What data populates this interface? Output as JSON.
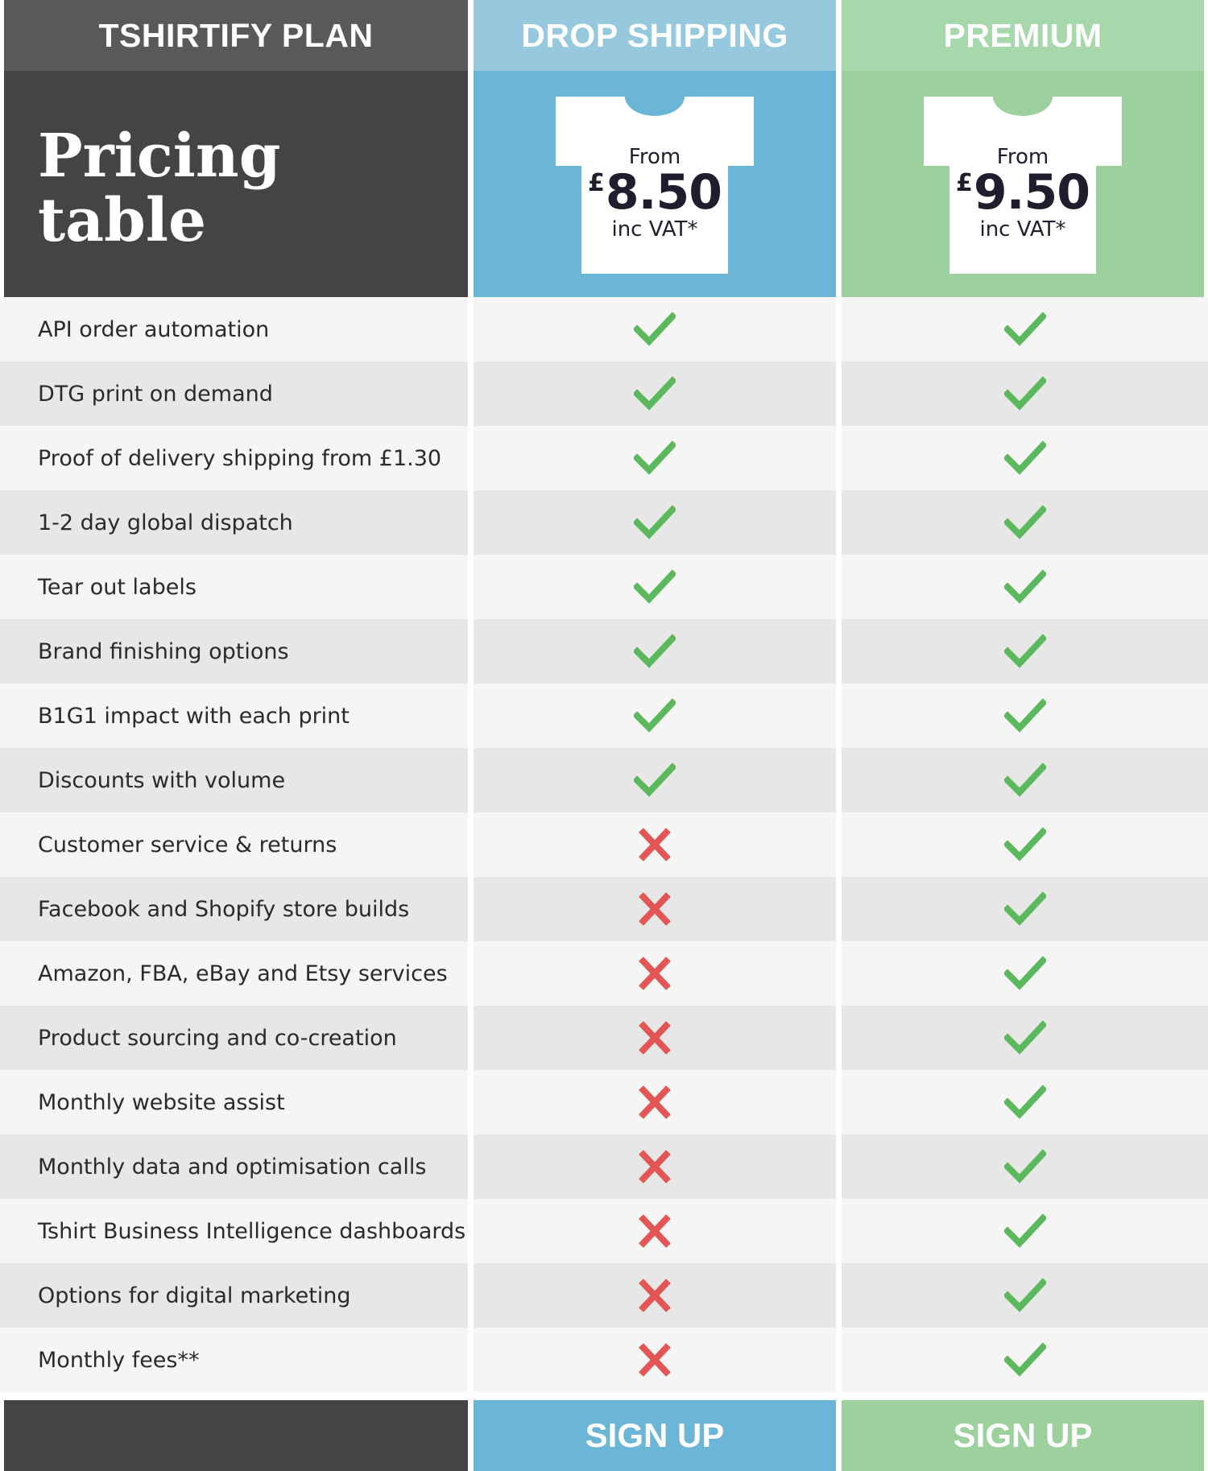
{
  "header": {
    "plan_label": "TSHIRTIFY PLAN",
    "drop_label": "DROP SHIPPING",
    "premium_label": "PREMIUM"
  },
  "hero": {
    "title_line1": "Pricing",
    "title_line2": "table"
  },
  "plans": {
    "drop": {
      "from": "From",
      "currency": "£",
      "price": "8.50",
      "vat": "inc VAT*"
    },
    "premium": {
      "from": "From",
      "currency": "£",
      "price": "9.50",
      "vat": "inc VAT*"
    }
  },
  "features": [
    {
      "label": "API order automation",
      "drop": true,
      "premium": true
    },
    {
      "label": "DTG print on demand",
      "drop": true,
      "premium": true
    },
    {
      "label": "Proof of delivery shipping from £1.30",
      "drop": true,
      "premium": true
    },
    {
      "label": "1-2 day global dispatch",
      "drop": true,
      "premium": true
    },
    {
      "label": "Tear out labels",
      "drop": true,
      "premium": true
    },
    {
      "label": "Brand finishing options",
      "drop": true,
      "premium": true
    },
    {
      "label": "B1G1 impact with each print",
      "drop": true,
      "premium": true
    },
    {
      "label": "Discounts with volume",
      "drop": true,
      "premium": true
    },
    {
      "label": "Customer service & returns",
      "drop": false,
      "premium": true
    },
    {
      "label": "Facebook and Shopify store builds",
      "drop": false,
      "premium": true
    },
    {
      "label": "Amazon, FBA, eBay and Etsy services",
      "drop": false,
      "premium": true
    },
    {
      "label": "Product sourcing and co-creation",
      "drop": false,
      "premium": true
    },
    {
      "label": "Monthly website assist",
      "drop": false,
      "premium": true
    },
    {
      "label": "Monthly data and optimisation calls",
      "drop": false,
      "premium": true
    },
    {
      "label": "Tshirt Business Intelligence dashboards",
      "drop": false,
      "premium": true
    },
    {
      "label": "Options for digital marketing",
      "drop": false,
      "premium": true
    },
    {
      "label": "Monthly fees**",
      "drop": false,
      "premium": true
    }
  ],
  "footer": {
    "drop_signup": "SIGN UP",
    "premium_signup": "SIGN UP"
  },
  "colors": {
    "check": "#5cb85c",
    "cross": "#e35656",
    "drop_accent": "#6bb5d6",
    "premium_accent": "#9cd09c",
    "dark": "#444444"
  },
  "icons": {
    "included": "check-icon",
    "excluded": "cross-icon",
    "plan_art": "tshirt-icon"
  }
}
